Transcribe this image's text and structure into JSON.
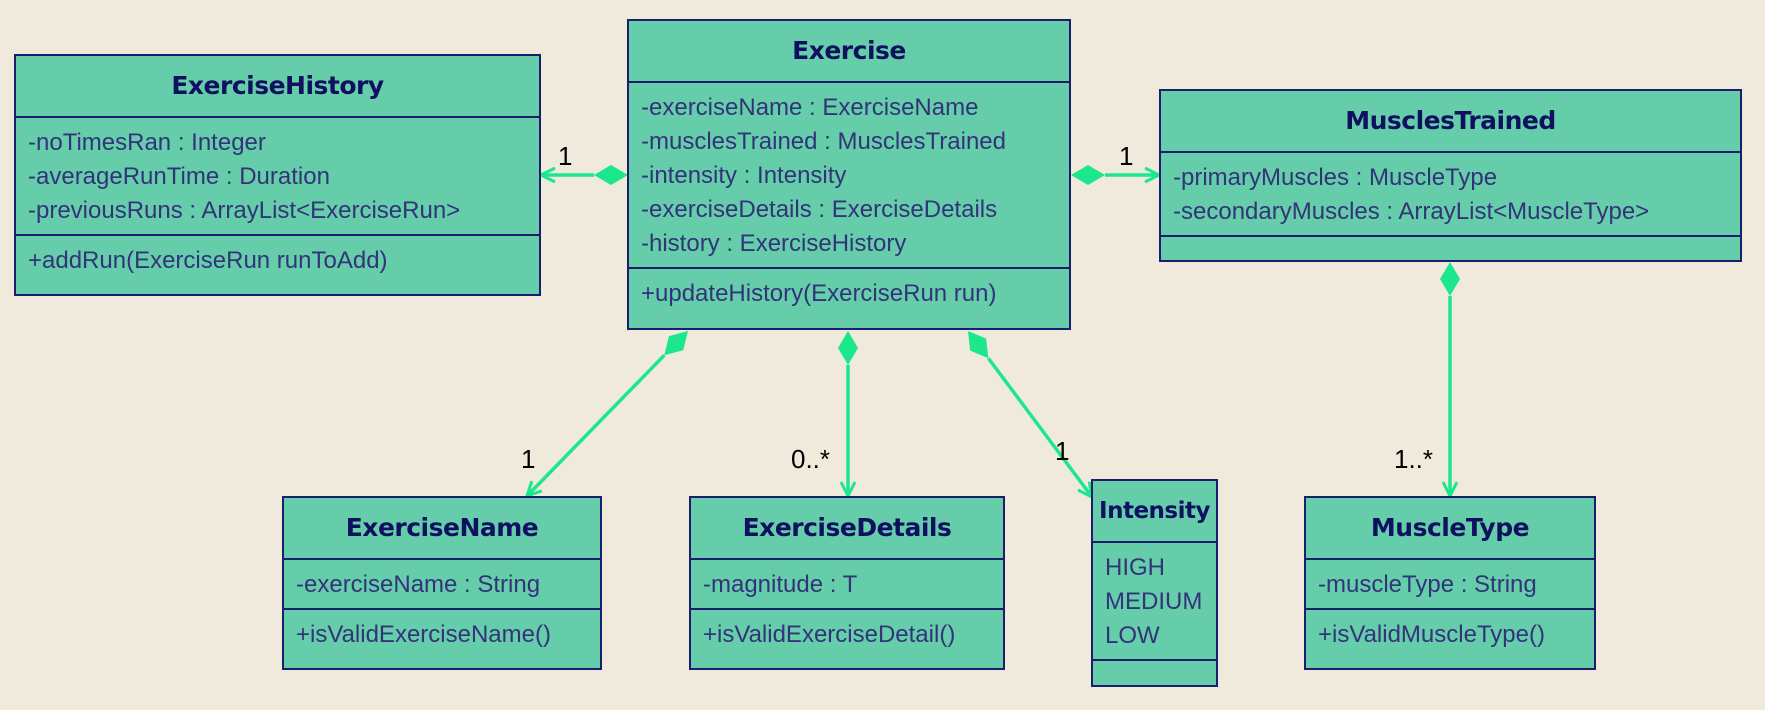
{
  "classes": {
    "exercise_history": {
      "name": "ExerciseHistory",
      "attributes": [
        "-noTimesRan : Integer",
        "-averageRunTime : Duration",
        "-previousRuns : ArrayList<ExerciseRun>"
      ],
      "methods": [
        "+addRun(ExerciseRun runToAdd)"
      ]
    },
    "exercise": {
      "name": "Exercise",
      "attributes": [
        "-exerciseName : ExerciseName",
        "-musclesTrained : MusclesTrained",
        "-intensity : Intensity",
        "-exerciseDetails : ExerciseDetails",
        "-history : ExerciseHistory"
      ],
      "methods": [
        "+updateHistory(ExerciseRun run)"
      ]
    },
    "muscles_trained": {
      "name": "MusclesTrained",
      "attributes": [
        "-primaryMuscles : MuscleType",
        "-secondaryMuscles : ArrayList<MuscleType>"
      ],
      "methods": []
    },
    "exercise_name": {
      "name": "ExerciseName",
      "attributes": [
        "-exerciseName : String"
      ],
      "methods": [
        "+isValidExerciseName()"
      ]
    },
    "exercise_details": {
      "name": "ExerciseDetails",
      "attributes": [
        "-magnitude : T"
      ],
      "methods": [
        "+isValidExerciseDetail()"
      ]
    },
    "intensity": {
      "name": "Intensity",
      "attributes": [
        "HIGH",
        "MEDIUM",
        "LOW"
      ],
      "methods": []
    },
    "muscle_type": {
      "name": "MuscleType",
      "attributes": [
        "-muscleType : String"
      ],
      "methods": [
        "+isValidMuscleType()"
      ]
    }
  },
  "multiplicities": {
    "to_history": "1",
    "to_muscles_trained": "1",
    "to_exercise_name": "1",
    "to_exercise_details": "0..*",
    "to_intensity": "1",
    "to_muscle_type": "1..*"
  },
  "colors": {
    "background": "#efeadc",
    "class_fill": "#66cdaa",
    "class_border": "#1d1d6e",
    "title_text": "#101060",
    "body_text": "#33337a",
    "connector": "#1de78c",
    "multiplicity_text": "#000000"
  }
}
